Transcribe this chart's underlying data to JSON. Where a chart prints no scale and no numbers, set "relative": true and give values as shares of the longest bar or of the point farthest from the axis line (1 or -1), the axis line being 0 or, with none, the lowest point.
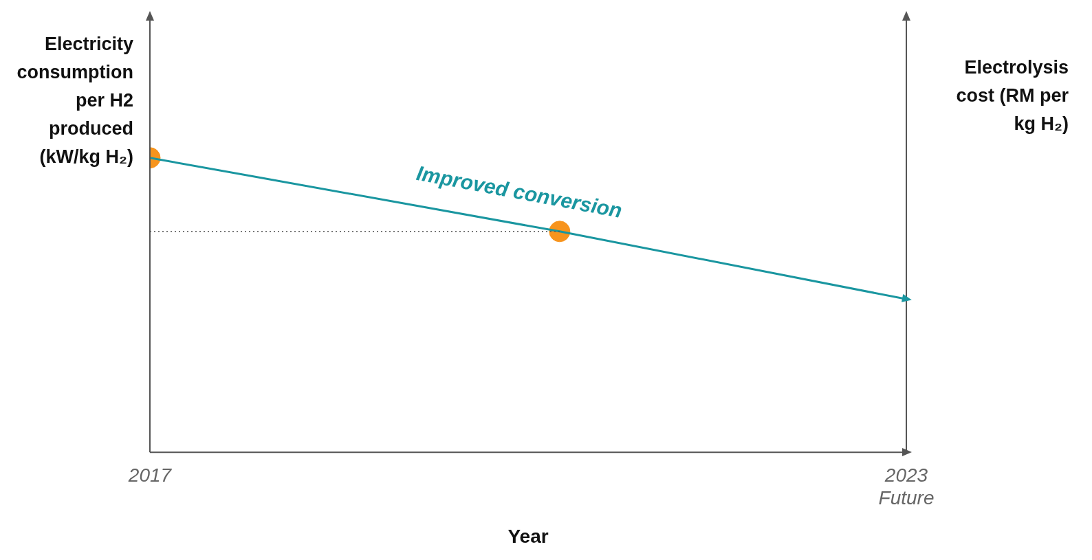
{
  "chart_data": {
    "type": "line",
    "relative": true,
    "xlabel": "Year",
    "ylabel": "Electricity consumption per H2 produced (kW/kg H₂)",
    "y2label": "Electrolysis cost (RM per kg H₂)",
    "xlim": [
      2017,
      2023
    ],
    "xticks": [
      2017,
      {
        "value": 2023,
        "label": "2023\nFuture"
      }
    ],
    "series": [
      {
        "color": "#1a96a0",
        "marker": "none",
        "x": [
          2017,
          2020.25,
          2023
        ],
        "values": [
          1,
          0.75,
          0.52
        ]
      },
      {
        "type": "scatter",
        "color": "#f7941d",
        "marker": "circle",
        "x": [
          2017,
          2020.25
        ],
        "values": [
          1,
          0.75
        ]
      }
    ],
    "ref_lines": [
      {
        "axis": "y",
        "value": 0.75,
        "color": "#555555",
        "line_style": "dotted"
      }
    ],
    "annotations": [
      "Improved conversion"
    ],
    "legend": false
  }
}
